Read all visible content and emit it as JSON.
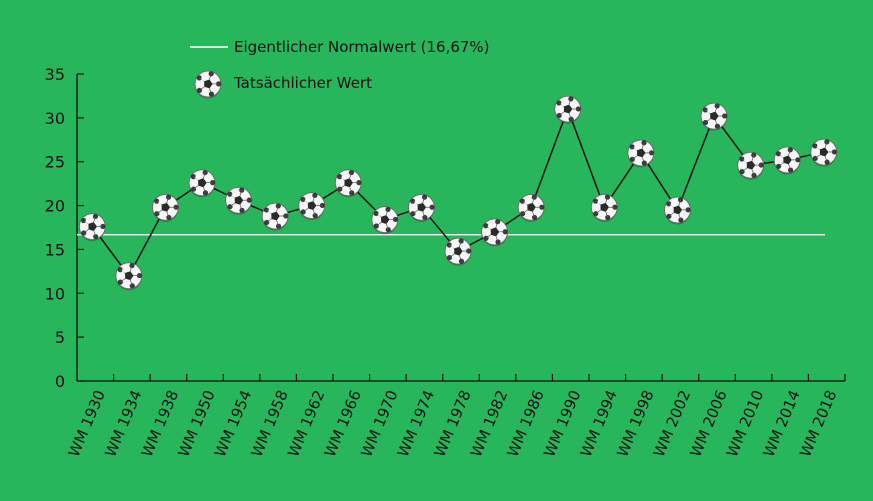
{
  "chart_data": {
    "type": "line",
    "categories": [
      "WM 1930",
      "WM 1934",
      "WM 1938",
      "WM 1950",
      "WM 1954",
      "WM 1958",
      "WM 1962",
      "WM 1966",
      "WM 1970",
      "WM 1974",
      "WM 1978",
      "WM 1982",
      "WM 1986",
      "WM 1990",
      "WM 1994",
      "WM 1998",
      "WM 2002",
      "WM 2006",
      "WM 2010",
      "WM 2014",
      "WM 2018"
    ],
    "series": [
      {
        "name": "Tatsächlicher Wert",
        "values": [
          17.6,
          12.0,
          19.8,
          22.6,
          20.6,
          18.8,
          20.0,
          22.6,
          18.4,
          19.8,
          14.8,
          17.0,
          19.8,
          31.0,
          19.8,
          26.0,
          19.5,
          30.2,
          24.6,
          25.2,
          26.1
        ],
        "color": "#111111",
        "marker_icon": "soccer-ball-icon"
      }
    ],
    "reference_line": {
      "name": "Eigentlicher Normalwert (16,67%)",
      "value": 16.67,
      "color": "#ffffff"
    },
    "yticks": [
      "0",
      "5",
      "10",
      "15",
      "20",
      "25",
      "30",
      "35"
    ],
    "ylim": [
      0,
      35
    ],
    "legend_position": "top-left",
    "grid": false
  }
}
